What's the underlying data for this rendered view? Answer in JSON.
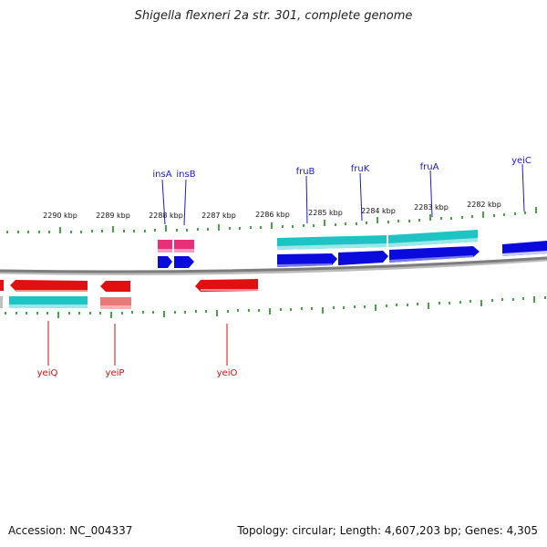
{
  "title": "Shigella flexneri 2a str. 301, complete genome",
  "footer": {
    "accession": "Accession: NC_004337",
    "summary": "Topology: circular; Length: 4,607,203 bp; Genes: 4,305"
  },
  "colors": {
    "backbone": "#8a8a8a",
    "forward_gene": "#0a0adc",
    "reverse_gene": "#e01010",
    "reverse_gene_light": "#e87a7a",
    "cds_cyan": "#22cccc",
    "mobile_element": "#e8307a",
    "tick": "#1a8a1a",
    "forward_label": "#1a1acc",
    "reverse_label": "#cc1111"
  },
  "scale_kbp": [
    "2290 kbp",
    "2289 kbp",
    "2288 kbp",
    "2287 kbp",
    "2286 kbp",
    "2285 kbp",
    "2284 kbp",
    "2283 kbp",
    "2282 kbp"
  ],
  "genes_forward": [
    "insA",
    "insB",
    "fruB",
    "fruK",
    "fruA",
    "yeiC"
  ],
  "genes_reverse": [
    "yeiQ",
    "yeiP",
    "yeiO"
  ]
}
